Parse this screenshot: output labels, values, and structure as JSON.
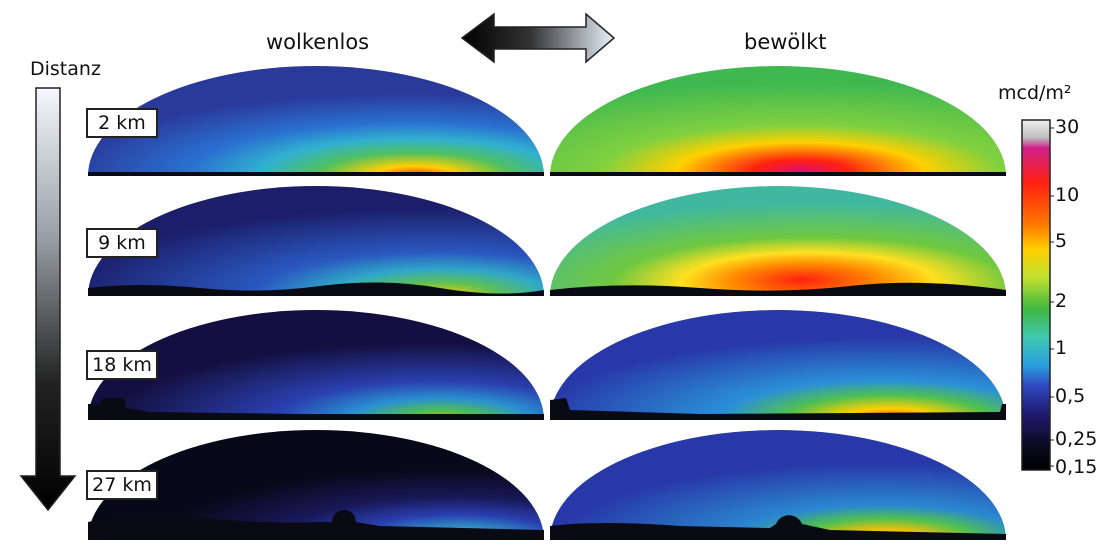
{
  "columns": {
    "left": "wolkenlos",
    "right": "bewölkt"
  },
  "distance_label": "Distanz",
  "rows": [
    {
      "distance": "2 km"
    },
    {
      "distance": "9 km"
    },
    {
      "distance": "18 km"
    },
    {
      "distance": "27 km"
    }
  ],
  "colorbar": {
    "unit": "mcd/m²",
    "ticks": [
      "30",
      "10",
      "5",
      "2",
      "1",
      "0,5",
      "0,25",
      "0,15"
    ],
    "colors": [
      "#e8e8e8",
      "#b8b8b8",
      "#d0208a",
      "#ff2010",
      "#ff7a00",
      "#ffd000",
      "#c0e030",
      "#40b840",
      "#40c8b0",
      "#2aa0e0",
      "#3048c0",
      "#201a70",
      "#0a0a20",
      "#000000"
    ]
  },
  "icons": {
    "compare_arrow": "double-headed-arrow-icon",
    "distance_arrow": "down-arrow-icon"
  }
}
